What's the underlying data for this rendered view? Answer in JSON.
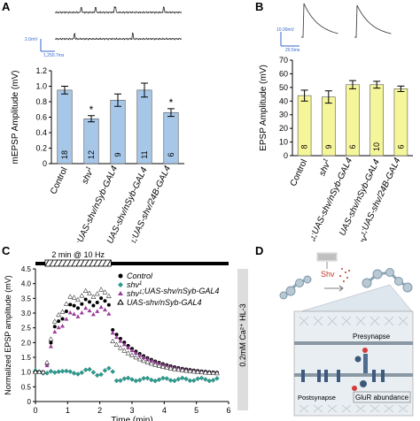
{
  "panel_labels": {
    "a": "A",
    "b": "B",
    "c": "C",
    "d": "D"
  },
  "scalebars": {
    "a_v": "2.0mV",
    "a_h": "1,250.7ms",
    "b_v": "10.00mV",
    "b_h": "20.5ms"
  },
  "colors": {
    "bar_a": "#a7c7e8",
    "bar_b": "#f5f59a",
    "control": "#000000",
    "shv1": "#2a9d8f",
    "rescue_nsyb": "#9b3d9a",
    "nsyb": "#ffffff"
  },
  "chart_data": [
    {
      "type": "bar",
      "id": "A",
      "ylabel": "mEPSP Amplitude (mV)",
      "ylim": [
        0,
        1.2
      ],
      "yticks": [
        "0",
        "0.2",
        "0.4",
        "0.6",
        "0.8",
        "1.0",
        "1.2"
      ],
      "categories": [
        "Control",
        "shv1",
        "shv1;UAS-shv/nSyb-GAL4",
        "UAS-shv/nSyb-GAL4",
        "shv1;UAS-shv/24B-GAL4"
      ],
      "values": [
        0.95,
        0.58,
        0.82,
        0.95,
        0.66
      ],
      "errors": [
        0.05,
        0.04,
        0.08,
        0.09,
        0.05
      ],
      "n": [
        "18",
        "12",
        "9",
        "11",
        "6"
      ],
      "significance": [
        "",
        "*",
        "",
        "",
        "*"
      ]
    },
    {
      "type": "bar",
      "id": "B",
      "ylabel": "EPSP Amplitude (mV)",
      "ylim": [
        0,
        70
      ],
      "yticks": [
        "0",
        "10",
        "20",
        "30",
        "40",
        "50",
        "60",
        "70"
      ],
      "categories": [
        "Control",
        "shv1",
        "shv1;UAS-shv/nSyb-GAL4",
        "UAS-shv/nSyb-GAL4",
        "shv1;UAS-shv/24B-GAL4"
      ],
      "values": [
        44,
        43,
        52,
        52,
        49
      ],
      "errors": [
        4,
        4.5,
        3,
        2.5,
        2
      ],
      "n": [
        "8",
        "9",
        "6",
        "10",
        "6"
      ]
    },
    {
      "type": "scatter",
      "id": "C",
      "ylabel": "Normalized EPSP amplitude (mV)",
      "xlabel": "Time (min)",
      "xlim": [
        0,
        6
      ],
      "ylim": [
        0,
        4.5
      ],
      "xticks": [
        "0",
        "1",
        "2",
        "3",
        "4",
        "5",
        "6"
      ],
      "yticks": [
        "0",
        "0.5",
        "1.0",
        "1.5",
        "2.0",
        "2.5",
        "3.0",
        "3.5",
        "4.0",
        "4.5"
      ],
      "stim_label": "2 min @ 10 Hz",
      "stim_start": 0.3,
      "stim_end": 2.35,
      "side_label": "0.2mM Ca²⁺ HL-3",
      "legend": [
        "Control",
        "shv1",
        "shv1;UAS-shv/nSyb-GAL4",
        "UAS-shv/nSyb-GAL4"
      ]
    }
  ],
  "diagram_d": {
    "shv_label": "Shv",
    "presynapse": "Presynapse",
    "postsynapse": "Postsynapse",
    "glur": "GluR abundance"
  }
}
